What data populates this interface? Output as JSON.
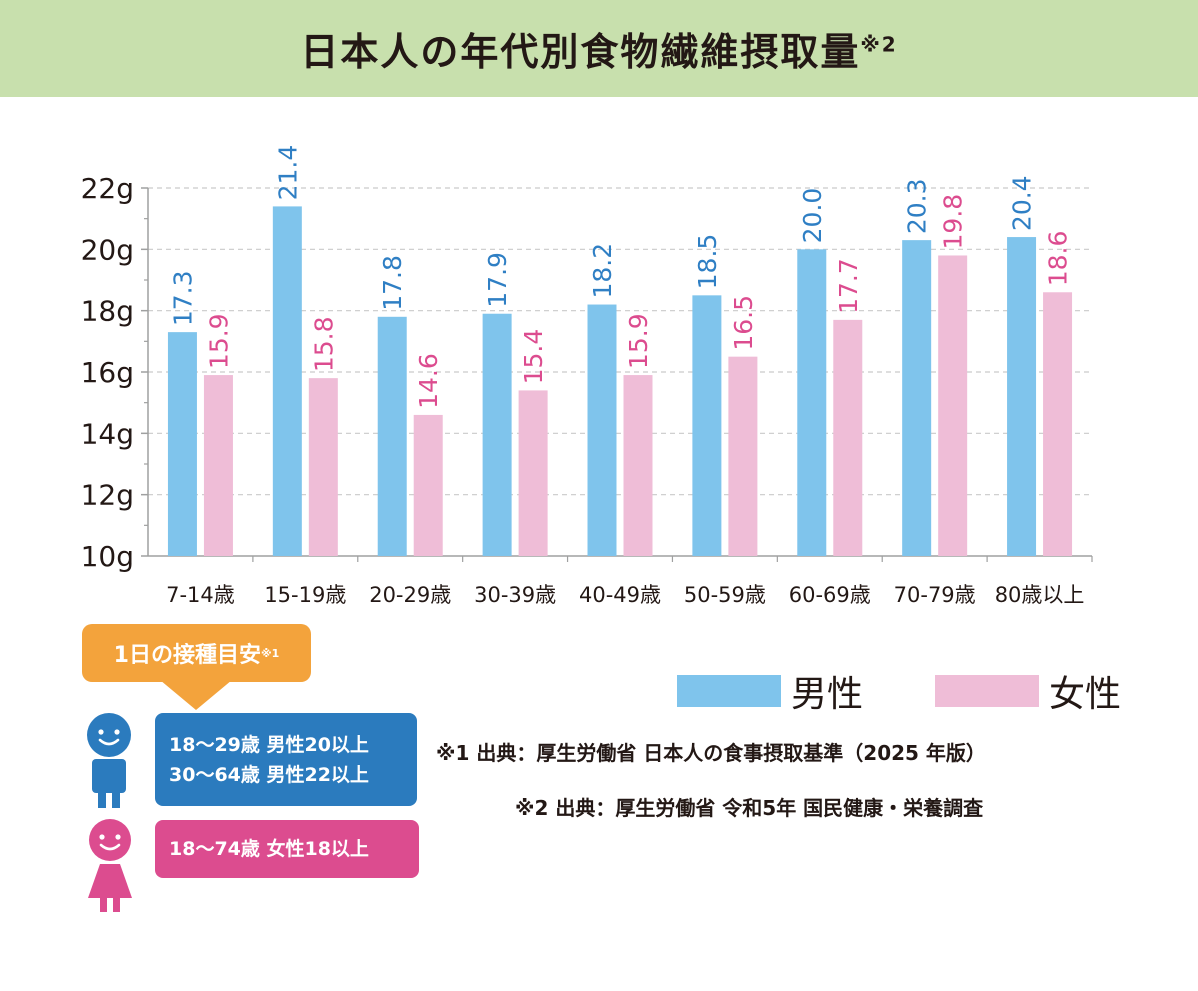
{
  "title": "日本人の年代別食物繊維摂取量",
  "title_note": "※2",
  "colors": {
    "male": "#7fc4ec",
    "female": "#efbdd7",
    "male_label": "#2f7fc4",
    "female_label": "#dc4c8f",
    "title_bg": "#c8e0ad",
    "badge": "#f3a33c",
    "male_box": "#2b7bbe",
    "female_box": "#dc4c8f"
  },
  "chart_data": {
    "type": "bar",
    "categories": [
      "7-14歳",
      "15-19歳",
      "20-29歳",
      "30-39歳",
      "40-49歳",
      "50-59歳",
      "60-69歳",
      "70-79歳",
      "80歳以上"
    ],
    "series": [
      {
        "name": "男性",
        "values": [
          17.3,
          21.4,
          17.8,
          17.9,
          18.2,
          18.5,
          20.0,
          20.3,
          20.4
        ],
        "labels": [
          "17.3",
          "21.4",
          "17.8",
          "17.9",
          "18.2",
          "18.5",
          "20.0",
          "20.3",
          "20.4"
        ]
      },
      {
        "name": "女性",
        "values": [
          15.9,
          15.8,
          14.6,
          15.4,
          15.9,
          16.5,
          17.7,
          19.8,
          18.6
        ],
        "labels": [
          "15.9",
          "15.8",
          "14.6",
          "15.4",
          "15.9",
          "16.5",
          "17.7",
          "19.8",
          "18.6"
        ]
      }
    ],
    "ylim": [
      10,
      22
    ],
    "yticks": [
      10,
      12,
      14,
      16,
      18,
      20,
      22
    ],
    "ytick_labels": [
      "10g",
      "12g",
      "14g",
      "16g",
      "18g",
      "20g",
      "22g"
    ],
    "grid": true,
    "legend_position": "bottom-right"
  },
  "legend": {
    "male": "男性",
    "female": "女性"
  },
  "reference": {
    "badge_label": "1日の接種目安",
    "badge_note": "※1",
    "male_lines": [
      "18〜29歳 男性20以上",
      "30〜64歳 男性22以上"
    ],
    "female_line": "18〜74歳 女性18以上"
  },
  "notes": [
    "※1 出典：厚生労働省 日本人の食事摂取基準（2025 年版）",
    "※2 出典：厚生労働省 令和5年 国民健康・栄養調査"
  ]
}
